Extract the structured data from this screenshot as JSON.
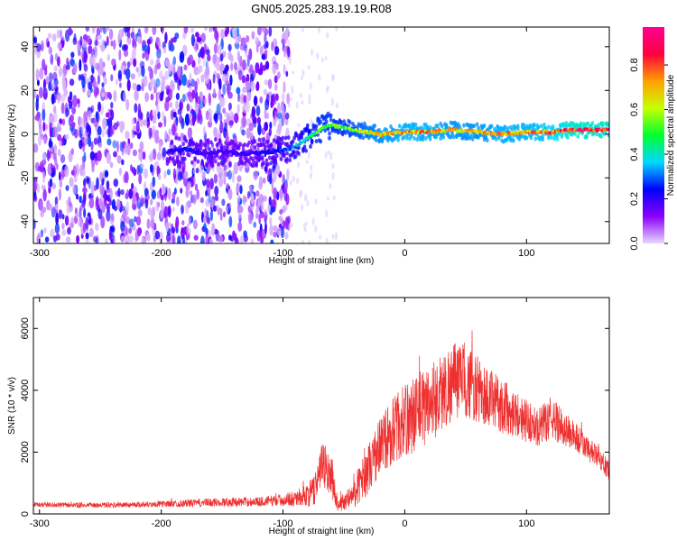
{
  "title": "GN05.2025.283.19.19.R08",
  "chart_data": [
    {
      "type": "heatmap",
      "title": "GN05.2025.283.19.19.R08",
      "xlabel": "Height of straight line (km)",
      "ylabel": "Frequency (Hz)",
      "xlim": [
        -305,
        168
      ],
      "ylim": [
        -50,
        49
      ],
      "xticks": [
        -300,
        -200,
        -100,
        0,
        100
      ],
      "xtick_labels": [
        "-300",
        "-200",
        "-100",
        "0",
        "100"
      ],
      "yticks": [
        -40,
        -20,
        0,
        20,
        40
      ],
      "ytick_labels": [
        "-40",
        "-20",
        "0",
        "20",
        "40"
      ],
      "colorbar": {
        "label": "Normalized spectral amplitude",
        "range": [
          0,
          0.97
        ],
        "ticks": [
          0.0,
          0.2,
          0.4,
          0.6,
          0.8
        ],
        "tick_labels": [
          "0.0",
          "0.2",
          "0.4",
          "0.6",
          "0.8"
        ],
        "colors": [
          "#e8d8ff",
          "#8a00ff",
          "#0000ff",
          "#00d8ff",
          "#00ff30",
          "#c8ff00",
          "#ffa000",
          "#ff0040",
          "#ff0090"
        ]
      },
      "noise_region_km": [
        -305,
        -95
      ],
      "ridge": {
        "x": [
          -195,
          -180,
          -165,
          -150,
          -130,
          -110,
          -95,
          -85,
          -75,
          -68,
          -60,
          -50,
          -40,
          -30,
          -20,
          0,
          20,
          40,
          60,
          80,
          100,
          120,
          140,
          168
        ],
        "freq": [
          -8,
          -7,
          -9,
          -8,
          -9,
          -8,
          -7,
          -4,
          0,
          3,
          4,
          3,
          2,
          1,
          0,
          1,
          1,
          2,
          1,
          0,
          1,
          1,
          2,
          2
        ],
        "amp": [
          0.2,
          0.25,
          0.2,
          0.2,
          0.2,
          0.25,
          0.3,
          0.4,
          0.5,
          0.55,
          0.55,
          0.55,
          0.6,
          0.65,
          0.7,
          0.75,
          0.75,
          0.7,
          0.7,
          0.75,
          0.75,
          0.8,
          0.9,
          0.9
        ]
      }
    },
    {
      "type": "line",
      "xlabel": "Height of straight line (km)",
      "ylabel": "SNR (10 * v/v)",
      "xlim": [
        -305,
        168
      ],
      "ylim": [
        0,
        7000
      ],
      "xticks": [
        -300,
        -200,
        -100,
        0,
        100
      ],
      "xtick_labels": [
        "-300",
        "-200",
        "-100",
        "0",
        "100"
      ],
      "yticks": [
        0,
        2000,
        4000,
        6000
      ],
      "ytick_labels": [
        "0",
        "2000",
        "4000",
        "6000"
      ],
      "color": "#ee3030",
      "envelope": {
        "x": [
          -305,
          -250,
          -200,
          -150,
          -120,
          -100,
          -85,
          -75,
          -68,
          -60,
          -55,
          -45,
          -35,
          -20,
          -10,
          0,
          10,
          20,
          30,
          40,
          50,
          60,
          70,
          80,
          90,
          100,
          110,
          120,
          130,
          140,
          150,
          160,
          168
        ],
        "mean": [
          300,
          280,
          320,
          380,
          400,
          450,
          550,
          700,
          1600,
          1200,
          300,
          500,
          1100,
          2200,
          2700,
          3000,
          3300,
          3600,
          3900,
          4300,
          4300,
          4000,
          3700,
          3500,
          3300,
          3000,
          2800,
          3100,
          2800,
          2500,
          2100,
          1800,
          1400
        ],
        "amp": [
          80,
          80,
          100,
          150,
          150,
          200,
          300,
          500,
          800,
          700,
          200,
          400,
          700,
          1000,
          1100,
          1200,
          1300,
          1300,
          1300,
          1300,
          1200,
          1100,
          1000,
          900,
          800,
          700,
          600,
          700,
          600,
          500,
          400,
          350,
          300
        ]
      }
    }
  ]
}
